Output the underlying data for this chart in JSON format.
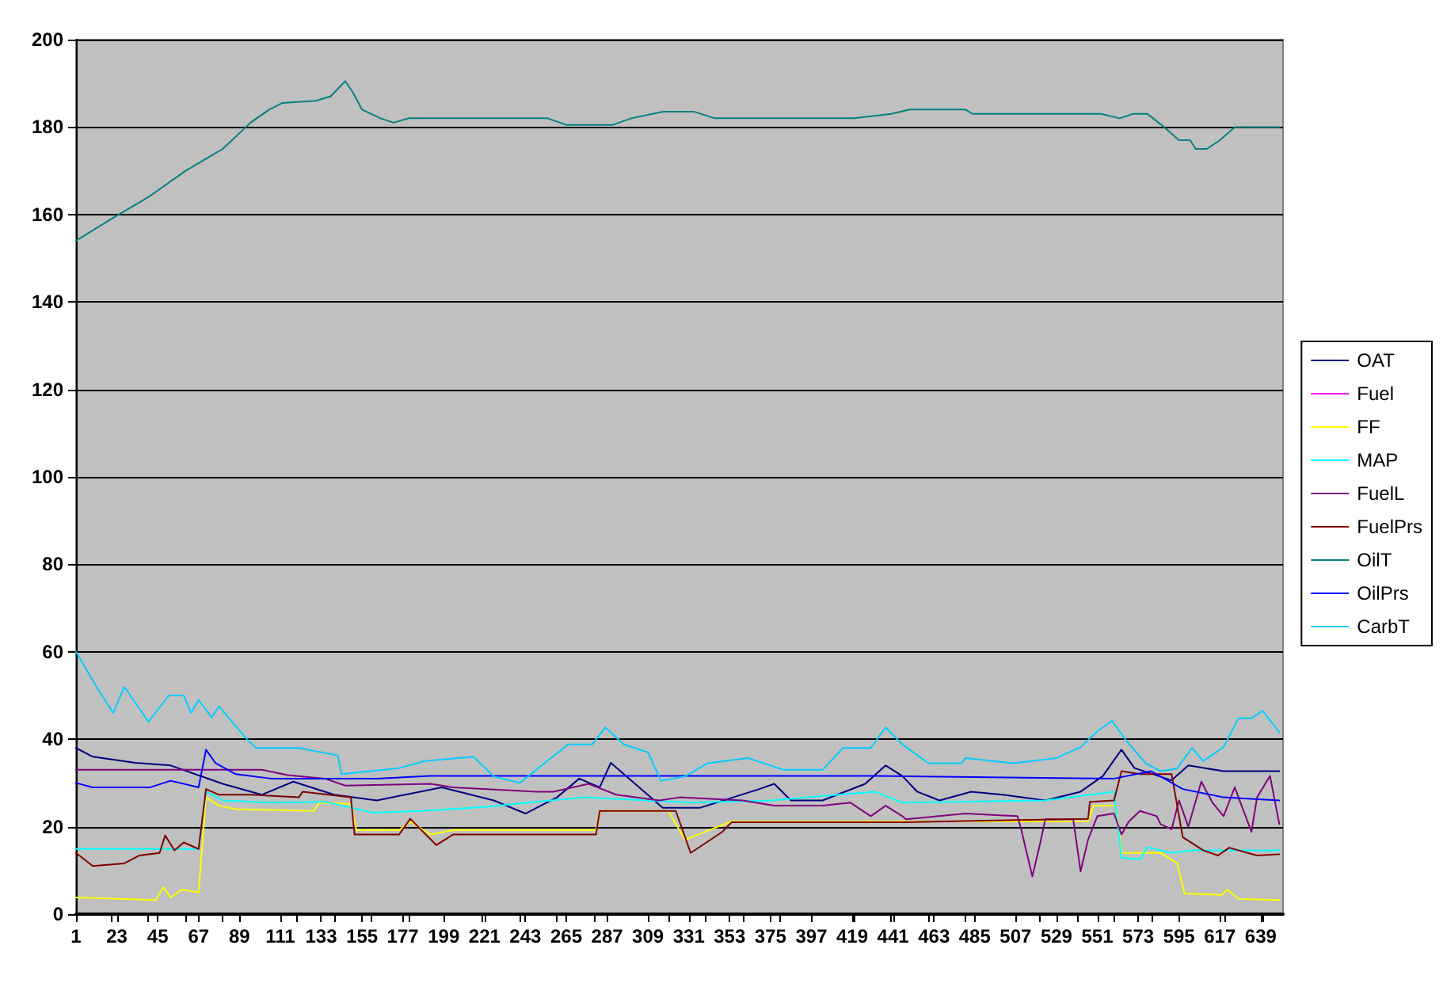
{
  "chart_data": {
    "type": "line",
    "xlim": [
      1,
      651
    ],
    "xticks": [
      1,
      23,
      45,
      67,
      89,
      111,
      133,
      155,
      177,
      199,
      221,
      243,
      265,
      287,
      309,
      331,
      353,
      375,
      397,
      419,
      441,
      463,
      485,
      507,
      529,
      551,
      573,
      595,
      617,
      639
    ],
    "ylim": [
      0,
      200
    ],
    "yticks": [
      0,
      20,
      40,
      60,
      80,
      100,
      120,
      140,
      160,
      180,
      200
    ],
    "grid": "y",
    "legend": "right",
    "marker": "none",
    "line_style": "solid",
    "series": [
      {
        "name": "OAT",
        "color": "#000080",
        "x": [
          1,
          10,
          33,
          52,
          80,
          101,
          118,
          140,
          163,
          198,
          226,
          243,
          260,
          272,
          283,
          289,
          307,
          317,
          337,
          369,
          377,
          386,
          403,
          426,
          437,
          446,
          454,
          466,
          483,
          500,
          523,
          542,
          554,
          564,
          571,
          591,
          600,
          619,
          649
        ],
        "values": [
          38,
          36,
          34.6,
          34,
          29.8,
          27.3,
          30.3,
          27.3,
          26,
          29,
          26,
          23,
          26.7,
          31,
          29,
          34.6,
          28,
          24.3,
          24.3,
          28.6,
          29.8,
          26,
          26,
          29.8,
          34,
          31.6,
          28,
          26,
          28,
          27.3,
          26,
          28,
          31.6,
          37.6,
          33.4,
          30.6,
          34,
          32.7,
          32.7
        ]
      },
      {
        "name": "Fuel",
        "color": "#ff00ff"
      },
      {
        "name": "FF",
        "color": "#ffff00",
        "x": [
          1,
          44,
          48,
          52,
          58,
          67,
          71,
          78,
          87,
          129,
          132,
          149,
          152,
          175,
          181,
          192,
          204,
          249,
          281,
          283,
          320,
          329,
          343,
          354,
          446,
          546,
          549,
          561,
          564,
          585,
          594,
          598,
          618,
          621,
          627,
          649
        ],
        "values": [
          3.8,
          3.2,
          6.2,
          3.8,
          5.6,
          5,
          26.7,
          24.8,
          24,
          23.6,
          25.5,
          25.2,
          19.2,
          19.2,
          21.2,
          18.2,
          19.2,
          19.2,
          19.2,
          23.6,
          23.6,
          17,
          19.4,
          21.2,
          21.2,
          21.2,
          24.8,
          24.8,
          14,
          14,
          11.6,
          4.7,
          4.4,
          5.6,
          3.5,
          3.2
        ]
      },
      {
        "name": "MAP",
        "color": "#00ffff",
        "x": [
          1,
          67,
          71,
          80,
          106,
          135,
          161,
          187,
          221,
          249,
          275,
          332,
          375,
          431,
          446,
          523,
          560,
          564,
          574,
          578,
          591,
          602,
          649
        ],
        "values": [
          14.9,
          14.9,
          28,
          26,
          25.5,
          25.7,
          23.2,
          23.6,
          24.5,
          25.7,
          26.7,
          25.5,
          26,
          28,
          25.5,
          26,
          28,
          12.9,
          12.5,
          15.3,
          14,
          14.6,
          14.6
        ]
      },
      {
        "name": "FuelL",
        "color": "#800080",
        "x": [
          1,
          101,
          115,
          135,
          146,
          192,
          204,
          249,
          258,
          277,
          292,
          315,
          326,
          360,
          377,
          403,
          418,
          429,
          437,
          446,
          448,
          480,
          508,
          510,
          516,
          520,
          523,
          538,
          542,
          546,
          551,
          560,
          564,
          568,
          574,
          583,
          585,
          591,
          595,
          600,
          607,
          613,
          619,
          625,
          634,
          637,
          644,
          649
        ],
        "values": [
          33,
          33,
          31.8,
          31,
          29.4,
          29.8,
          29,
          28,
          28,
          29.8,
          27.3,
          26,
          26.7,
          26,
          24.8,
          24.8,
          25.5,
          22.4,
          24.8,
          22.4,
          21.7,
          23,
          22.4,
          19.4,
          8.6,
          15.8,
          21.7,
          21.7,
          9.8,
          17,
          22.4,
          23,
          18.2,
          21.2,
          23.6,
          22.4,
          20.6,
          19.4,
          26,
          20,
          30.3,
          25.5,
          22.4,
          29,
          18.8,
          26.7,
          31.6,
          20.6
        ]
      },
      {
        "name": "FuelPrs",
        "color": "#800000",
        "x": [
          1,
          10,
          27,
          35,
          46,
          49,
          54,
          59,
          67,
          71,
          78,
          95,
          121,
          123,
          149,
          151,
          175,
          181,
          195,
          204,
          249,
          281,
          283,
          324,
          332,
          349,
          354,
          446,
          546,
          547,
          560,
          564,
          574,
          591,
          597,
          608,
          616,
          622,
          637,
          649
        ],
        "values": [
          14,
          11,
          11.6,
          13.4,
          14,
          18,
          14.6,
          16.4,
          14.9,
          28.6,
          27.3,
          27.3,
          26.7,
          28,
          26.7,
          18.2,
          18.2,
          21.8,
          15.8,
          18.2,
          18.2,
          18.2,
          23.6,
          23.6,
          14,
          18.8,
          21,
          21,
          21.8,
          25.7,
          26,
          32.7,
          32,
          32,
          17.6,
          14.6,
          13.4,
          15.2,
          13.4,
          13.7
        ]
      },
      {
        "name": "OilT",
        "color": "#008080",
        "x": [
          1,
          20,
          40,
          60,
          80,
          95,
          105,
          112,
          130,
          138,
          146,
          150,
          155,
          165,
          172,
          180,
          255,
          265,
          290,
          300,
          317,
          334,
          345,
          420,
          440,
          450,
          480,
          484,
          553,
          563,
          570,
          578,
          587,
          595,
          601,
          604,
          610,
          617,
          625,
          649
        ],
        "values": [
          154,
          159,
          164,
          170,
          175,
          181,
          184,
          185.5,
          186,
          187,
          190.5,
          188,
          184,
          182,
          181,
          182,
          182,
          180.5,
          180.5,
          182,
          183.5,
          183.5,
          182,
          182,
          183,
          184,
          184,
          183,
          183,
          182,
          183,
          183,
          180,
          177,
          177,
          175,
          175,
          177,
          180,
          180
        ]
      },
      {
        "name": "OilPrs",
        "color": "#0000ff",
        "x": [
          1,
          10,
          41,
          52,
          67,
          71,
          76,
          87,
          106,
          163,
          192,
          431,
          560,
          580,
          597,
          619,
          649
        ],
        "values": [
          30,
          29,
          29,
          30.5,
          29,
          37.6,
          34.6,
          32,
          31,
          31,
          31.6,
          31.6,
          31,
          32.7,
          28.6,
          26.7,
          26
        ]
      },
      {
        "name": "CarbT",
        "color": "#00ccff",
        "x": [
          1,
          12,
          21,
          27,
          40,
          51,
          59,
          63,
          67,
          74,
          78,
          93,
          98,
          121,
          142,
          144,
          175,
          189,
          215,
          226,
          240,
          266,
          279,
          286,
          296,
          309,
          316,
          329,
          341,
          363,
          382,
          403,
          414,
          429,
          437,
          446,
          460,
          478,
          480,
          506,
          529,
          542,
          551,
          559,
          566,
          577,
          585,
          594,
          602,
          608,
          619,
          627,
          634,
          640,
          649
        ],
        "values": [
          60,
          52,
          46,
          52,
          44,
          50,
          50,
          46,
          49,
          45,
          47.5,
          40,
          38,
          38,
          36.3,
          32,
          33.4,
          35,
          36,
          31.5,
          30,
          38.8,
          38.8,
          42.7,
          38.8,
          37,
          30.5,
          31.5,
          34.5,
          35.7,
          33,
          33,
          38,
          38,
          42.7,
          38.8,
          34.5,
          34.5,
          35.7,
          34.5,
          35.7,
          38.2,
          41.8,
          44.2,
          40,
          34.5,
          32.7,
          33.3,
          38,
          35,
          38.2,
          44.8,
          44.8,
          46.5,
          41.6
        ]
      }
    ]
  }
}
